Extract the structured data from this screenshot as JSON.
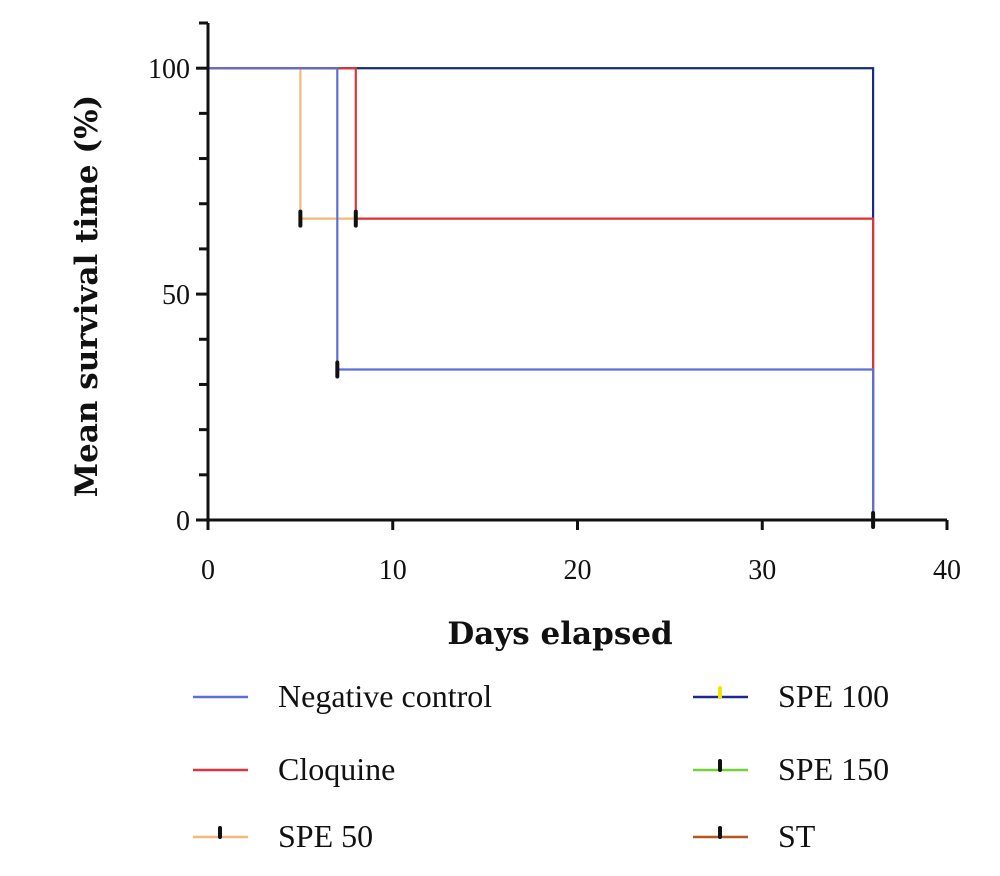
{
  "chart_data": {
    "type": "line",
    "title": "",
    "xlabel": "Days elapsed",
    "ylabel": "Mean survival time (%)",
    "xlim": [
      0,
      40
    ],
    "ylim": [
      0,
      110
    ],
    "xticks": [
      "0",
      "10",
      "20",
      "30",
      "40"
    ],
    "yticks": [
      "0",
      "50",
      "100"
    ],
    "grid": false,
    "legend_position": "bottom",
    "series": [
      {
        "name": "Negative control",
        "color": "#5b6fd6",
        "x": [
          0,
          7,
          7,
          36,
          36
        ],
        "y": [
          100,
          100,
          33.3,
          33.3,
          0
        ],
        "censored": [
          {
            "x": 7,
            "y": 33.3
          }
        ]
      },
      {
        "name": "Cloquine",
        "color": "#e0323a",
        "x": [
          0,
          8,
          8,
          36,
          36
        ],
        "y": [
          100,
          100,
          66.7,
          66.7,
          0
        ],
        "censored": [
          {
            "x": 8,
            "y": 66.7
          }
        ]
      },
      {
        "name": "SPE 50",
        "color": "#f4b87a",
        "x": [
          0,
          5,
          5,
          36,
          36
        ],
        "y": [
          100,
          100,
          66.7,
          66.7,
          0
        ],
        "censored": [
          {
            "x": 5,
            "y": 66.7
          }
        ]
      },
      {
        "name": "SPE 100",
        "color": "#1a2a8c",
        "marker_color": "#f2e600",
        "x": [
          0,
          36,
          36
        ],
        "y": [
          100,
          100,
          0
        ],
        "censored": [
          {
            "x": 36,
            "y": 0
          }
        ]
      },
      {
        "name": "SPE 150",
        "color": "#6fd43a",
        "x": [
          0,
          36
        ],
        "y": [
          100,
          100
        ],
        "censored": []
      },
      {
        "name": "ST",
        "color": "#b5561c",
        "x": [
          0,
          36
        ],
        "y": [
          100,
          100
        ],
        "censored": []
      }
    ]
  }
}
